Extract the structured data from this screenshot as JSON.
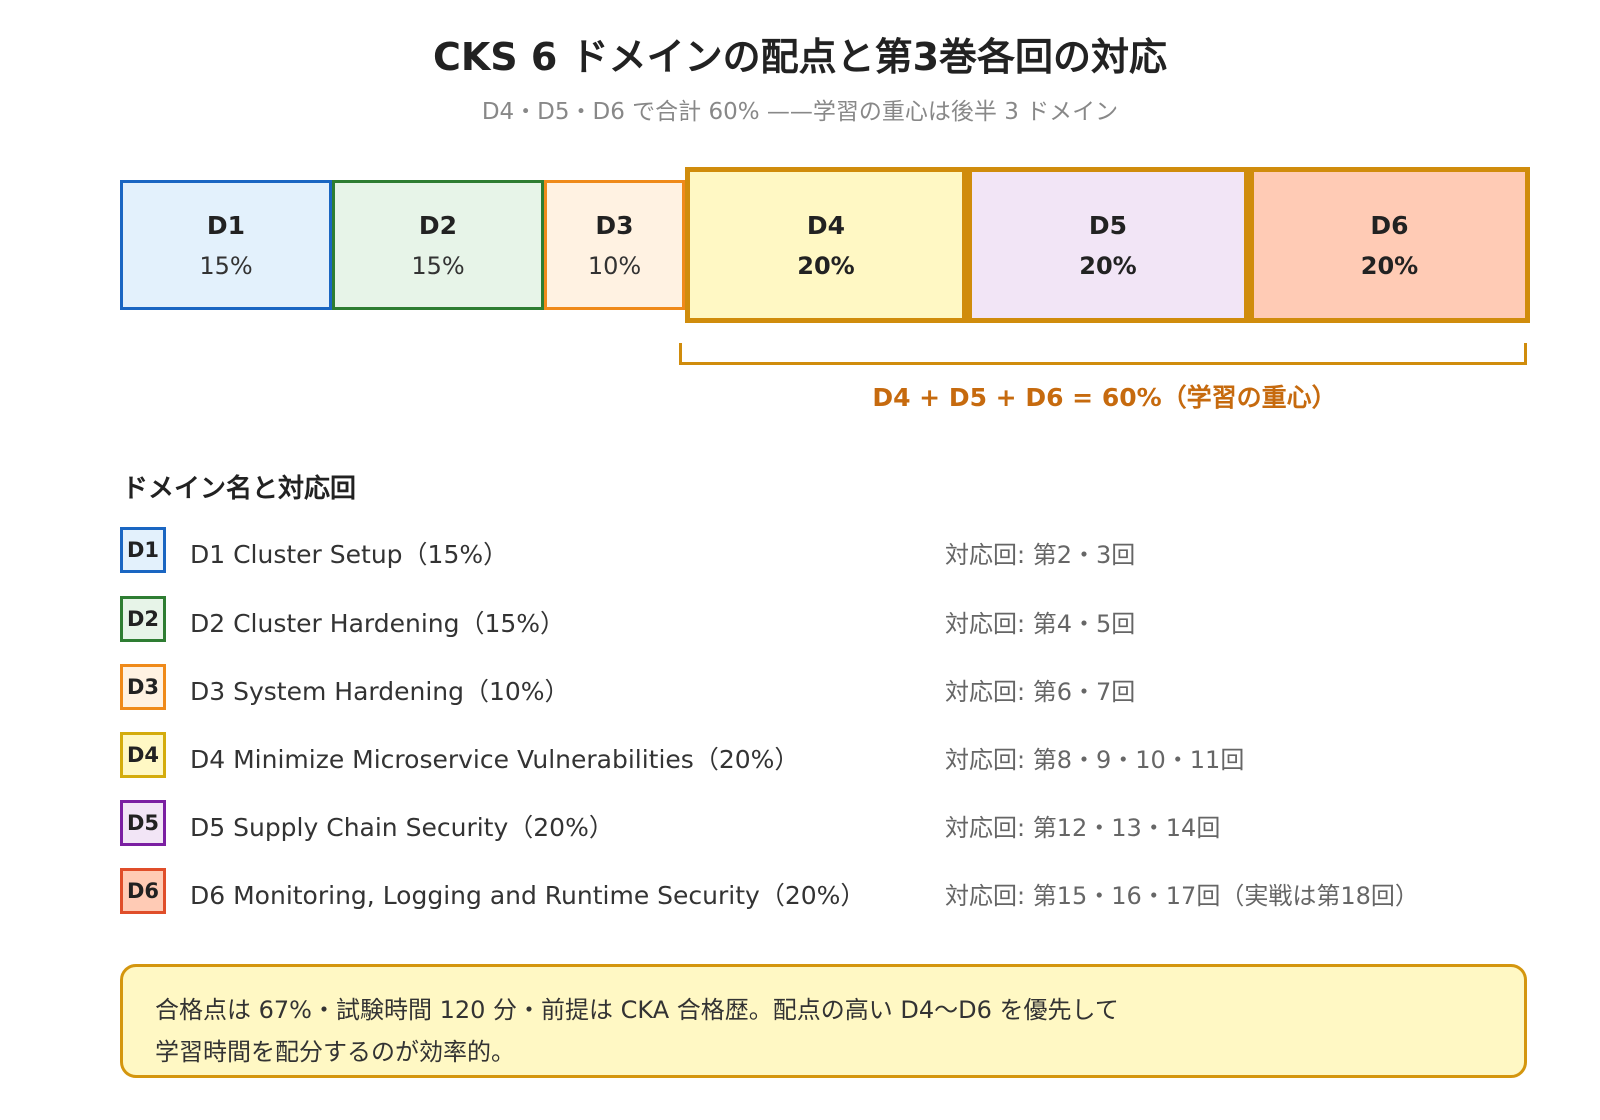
{
  "title": "CKS 6 ドメインの配点と第3巻各回の対応",
  "subtitle": "D4・D5・D6 で合計 60% ——学習の重心は後半 3 ドメイン",
  "domains": [
    {
      "code": "D1",
      "percent": "15%",
      "weight": 15,
      "border": "#1a66c2",
      "fill": "#e3f1fc"
    },
    {
      "code": "D2",
      "percent": "15%",
      "weight": 15,
      "border": "#2e7d32",
      "fill": "#e7f4e8"
    },
    {
      "code": "D3",
      "percent": "10%",
      "weight": 10,
      "border": "#ef8a1a",
      "fill": "#fff2e2"
    },
    {
      "code": "D4",
      "percent": "20%",
      "weight": 20,
      "border": "#d08c0c",
      "fill": "#fff8c4"
    },
    {
      "code": "D5",
      "percent": "20%",
      "weight": 20,
      "border": "#d08c0c",
      "fill": "#f2e5f6"
    },
    {
      "code": "D6",
      "percent": "20%",
      "weight": 20,
      "border": "#d08c0c",
      "fill": "#ffcbb5"
    }
  ],
  "bracket_label": "D4 + D5 + D6 = 60%（学習の重心）",
  "legend": {
    "heading": "ドメイン名と対応回",
    "items": [
      {
        "badge": "D1",
        "name": "D1 Cluster Setup（15%）",
        "mapping": "対応回: 第2・3回",
        "border": "#1a66c2",
        "fill": "#e3f1fc"
      },
      {
        "badge": "D2",
        "name": "D2 Cluster Hardening（15%）",
        "mapping": "対応回: 第4・5回",
        "border": "#2e7d32",
        "fill": "#e7f4e8"
      },
      {
        "badge": "D3",
        "name": "D3 System Hardening（10%）",
        "mapping": "対応回: 第6・7回",
        "border": "#ef8a1a",
        "fill": "#fff2e2"
      },
      {
        "badge": "D4",
        "name": "D4 Minimize Microservice Vulnerabilities（20%）",
        "mapping": "対応回: 第8・9・10・11回",
        "border": "#d4ac0d",
        "fill": "#fff8c4"
      },
      {
        "badge": "D5",
        "name": "D5 Supply Chain Security（20%）",
        "mapping": "対応回: 第12・13・14回",
        "border": "#7b1fa2",
        "fill": "#f2e5f6"
      },
      {
        "badge": "D6",
        "name": "D6 Monitoring, Logging and Runtime Security（20%）",
        "mapping": "対応回: 第15・16・17回（実戦は第18回）",
        "border": "#e04e2a",
        "fill": "#ffcbb5"
      }
    ]
  },
  "note": {
    "line1": "合格点は 67%・試験時間 120 分・前提は CKA 合格歴。配点の高い D4〜D6 を優先して",
    "line2": "学習時間を配分するのが効率的。"
  }
}
